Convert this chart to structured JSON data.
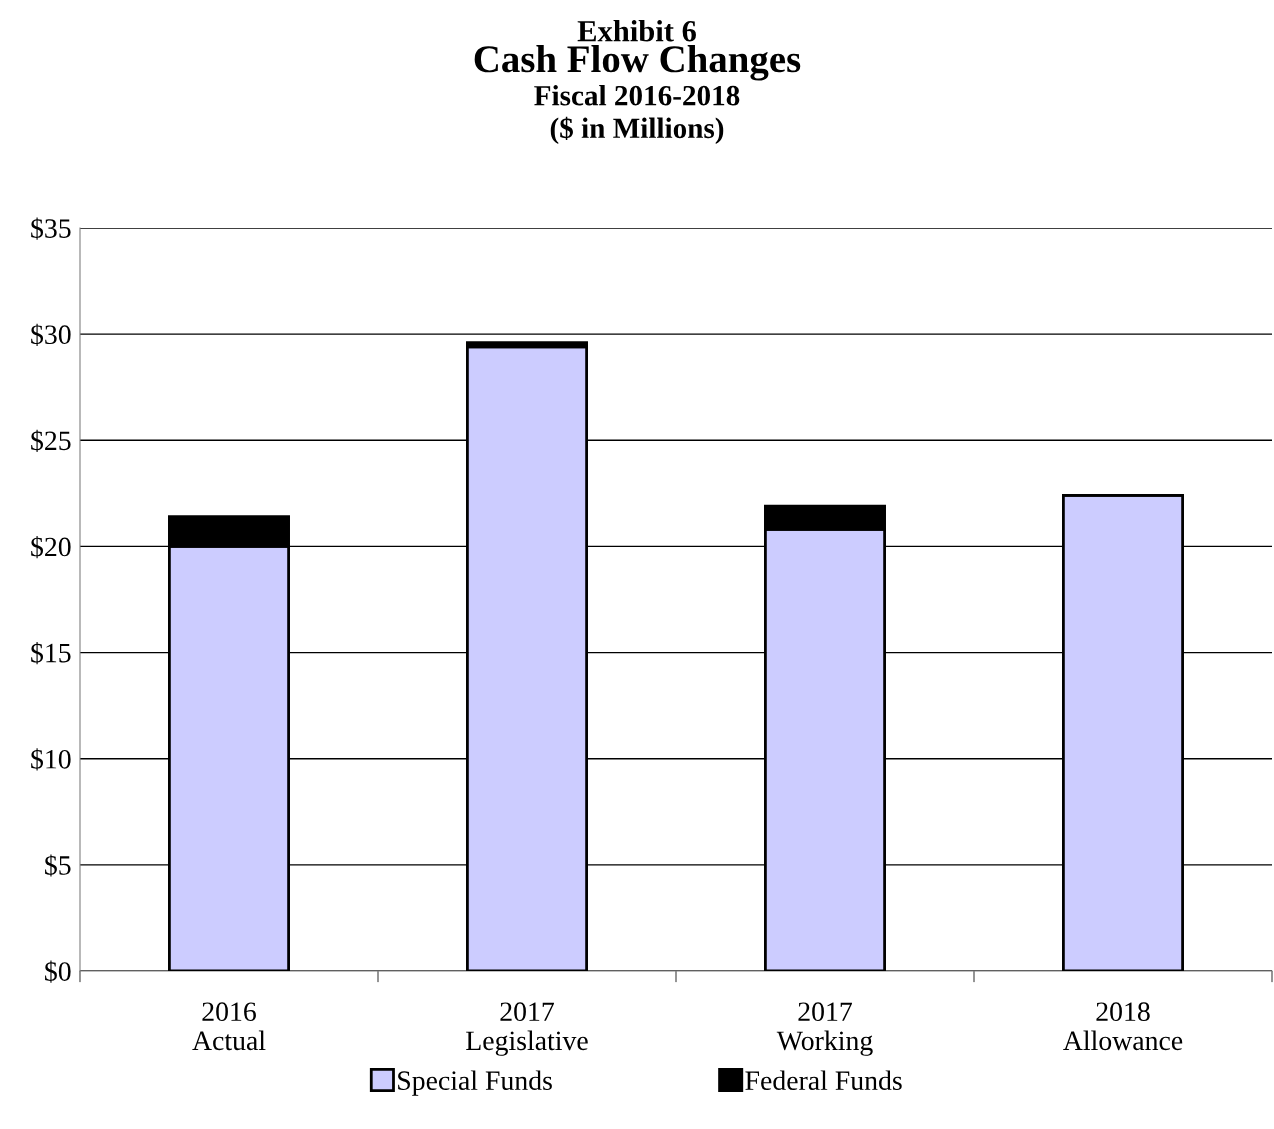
{
  "chart_data": {
    "type": "bar",
    "title": "Exhibit 6",
    "subtitle": "Cash Flow Changes\nFiscal 2016-2018\n($ in Millions)",
    "categories": [
      "2016\nActual",
      "2017\nLegislative",
      "2017\nWorking",
      "2018\nAllowance"
    ],
    "stacked": true,
    "series": [
      {
        "name": "Special Funds",
        "color": "#ccccff",
        "values": [
          20.0,
          29.4,
          20.8,
          22.4
        ]
      },
      {
        "name": "Federal Funds",
        "color": "#000000",
        "values": [
          1.4,
          0.2,
          1.1,
          0.0
        ]
      }
    ],
    "ylim": [
      0,
      35
    ],
    "yticks": [
      {
        "value": 0,
        "label": "$0"
      },
      {
        "value": 5,
        "label": "$5"
      },
      {
        "value": 10,
        "label": "$10"
      },
      {
        "value": 15,
        "label": "$15"
      },
      {
        "value": 20,
        "label": "$20"
      },
      {
        "value": 25,
        "label": "$25"
      },
      {
        "value": 30,
        "label": "$30"
      },
      {
        "value": 35,
        "label": "$35"
      }
    ],
    "grid": "y",
    "legend": "bottom"
  }
}
